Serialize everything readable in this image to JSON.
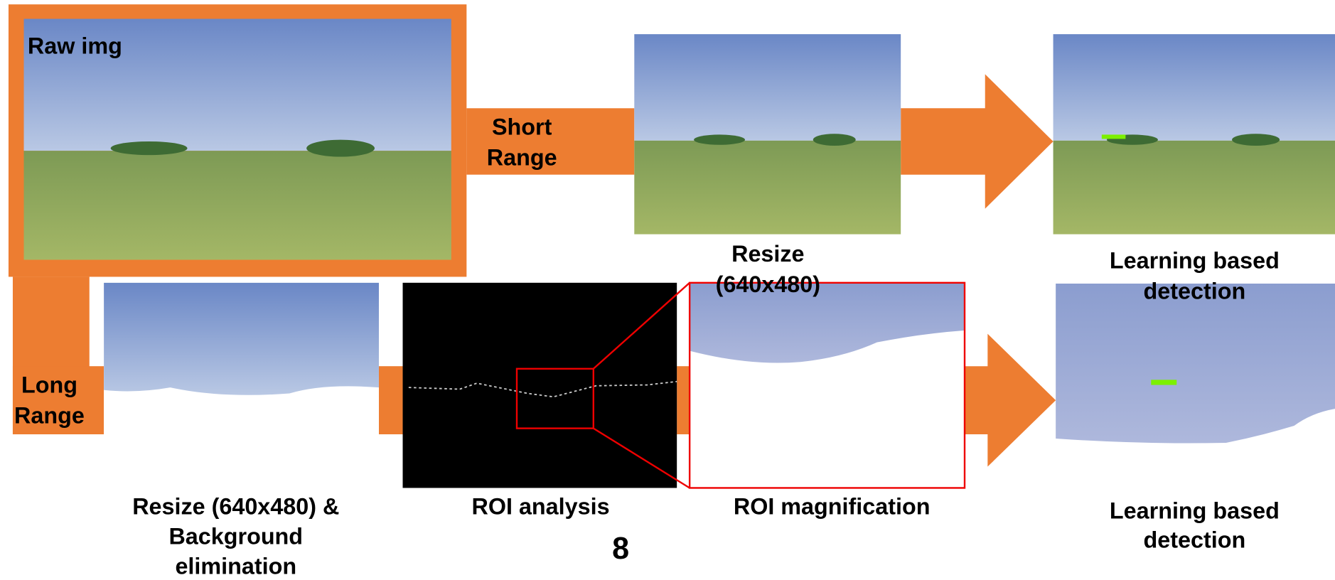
{
  "labels": {
    "raw": "Raw img",
    "short_range": [
      "Short",
      "Range"
    ],
    "long_range": [
      "Long",
      "Range"
    ],
    "resize": [
      "Resize",
      "(640x480)"
    ],
    "detection_short": [
      "Learning based",
      "detection"
    ],
    "resize_bg": [
      "Resize (640x480) &",
      "Background",
      "elimination"
    ],
    "roi_analysis": "ROI analysis",
    "roi_magnification": "ROI magnification",
    "detection_long": [
      "Learning based",
      "detection"
    ],
    "page_number": "8"
  }
}
